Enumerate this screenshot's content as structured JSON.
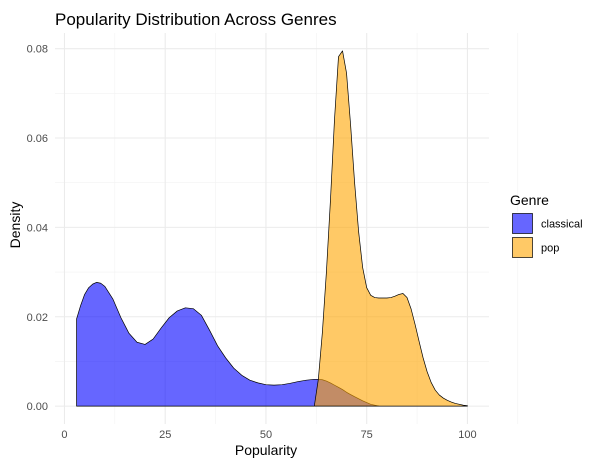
{
  "chart_data": {
    "type": "area",
    "subtype": "density",
    "title": "Popularity Distribution Across Genres",
    "xlabel": "Popularity",
    "ylabel": "Density",
    "xlim": [
      0,
      100
    ],
    "ylim": [
      0,
      0.08
    ],
    "x_ticks": [
      0,
      25,
      50,
      75,
      100
    ],
    "y_ticks": [
      0.0,
      0.02,
      0.04,
      0.06,
      0.08
    ],
    "y_tick_labels": [
      "0.00",
      "0.02",
      "0.04",
      "0.06",
      "0.08"
    ],
    "grid": true,
    "legend": {
      "title": "Genre",
      "position": "right"
    },
    "series": [
      {
        "name": "classical",
        "color": "#0000FF",
        "opacity": 0.6,
        "x": [
          3,
          4,
          5,
          6,
          7,
          8,
          9,
          10,
          12,
          14,
          16,
          18,
          20,
          22,
          24,
          26,
          28,
          30,
          32,
          34,
          36,
          38,
          40,
          42,
          44,
          46,
          48,
          50,
          52,
          54,
          56,
          58,
          60,
          62,
          63,
          64,
          65,
          66,
          67,
          68,
          69,
          70,
          71,
          72,
          74,
          76,
          78
        ],
        "y": [
          0.0195,
          0.0225,
          0.025,
          0.0265,
          0.0273,
          0.0277,
          0.0275,
          0.0268,
          0.024,
          0.0198,
          0.0163,
          0.0143,
          0.0138,
          0.015,
          0.0175,
          0.0198,
          0.0213,
          0.022,
          0.0218,
          0.0203,
          0.017,
          0.0135,
          0.0108,
          0.0085,
          0.0069,
          0.0058,
          0.0052,
          0.0048,
          0.0047,
          0.0048,
          0.0051,
          0.0055,
          0.0058,
          0.006,
          0.006,
          0.0059,
          0.0056,
          0.0052,
          0.0047,
          0.0042,
          0.0037,
          0.0031,
          0.0026,
          0.0021,
          0.0012,
          0.0004,
          0.0
        ]
      },
      {
        "name": "pop",
        "color": "#FFA500",
        "opacity": 0.6,
        "x": [
          62,
          63,
          64,
          65,
          66,
          67,
          68,
          69,
          70,
          71,
          72,
          73,
          74,
          75,
          76,
          77,
          78,
          79,
          80,
          81,
          82,
          83,
          84,
          85,
          86,
          87,
          88,
          89,
          90,
          91,
          92,
          93,
          94,
          95,
          96,
          97,
          98,
          99,
          100
        ],
        "y": [
          0.0,
          0.006,
          0.0165,
          0.03,
          0.046,
          0.064,
          0.0782,
          0.0795,
          0.0745,
          0.063,
          0.05,
          0.039,
          0.031,
          0.0265,
          0.0248,
          0.0243,
          0.0242,
          0.0242,
          0.0242,
          0.0243,
          0.0246,
          0.025,
          0.0252,
          0.0243,
          0.0218,
          0.0183,
          0.0145,
          0.0108,
          0.0077,
          0.0053,
          0.0036,
          0.0025,
          0.0018,
          0.0013,
          0.0009,
          0.0006,
          0.0004,
          0.0002,
          0.0001
        ]
      }
    ]
  }
}
